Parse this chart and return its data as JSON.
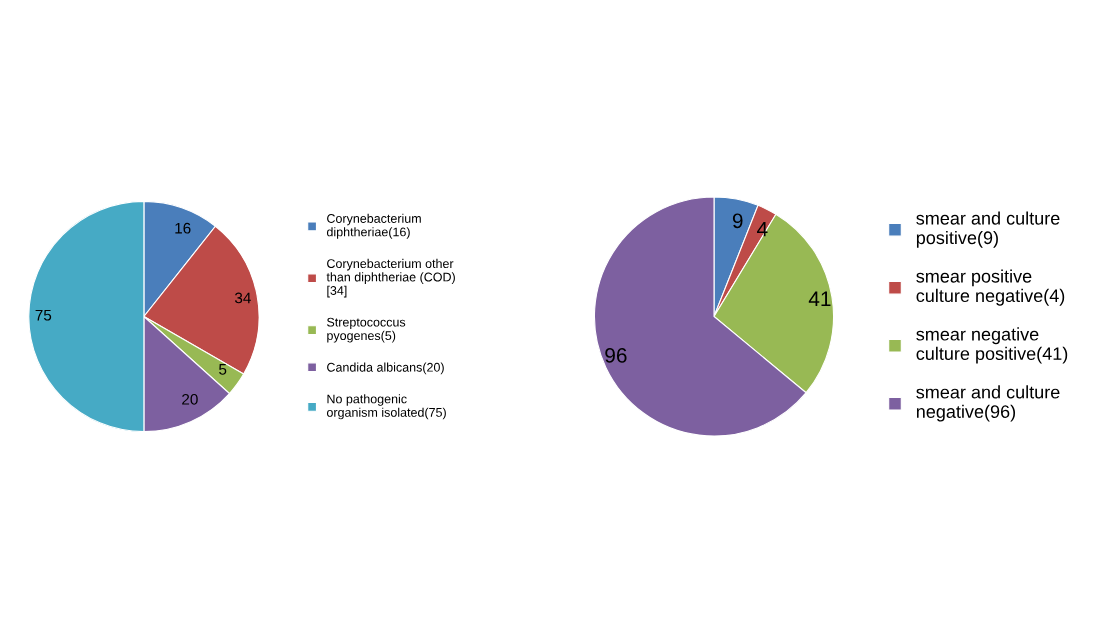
{
  "chart_data": [
    {
      "type": "pie",
      "categories": [
        "Corynebacterium\ndiphtheriae(16)",
        "Corynebacterium other\nthan diphtheriae (COD)\n[34]",
        "Streptococcus\npyogenes(5)",
        "Candida albicans(20)",
        "No pathogenic\norganism isolated(75)"
      ],
      "values": [
        16,
        34,
        5,
        20,
        75
      ],
      "colors": [
        "#4a7ebb",
        "#be4b48",
        "#98b954",
        "#7d60a0",
        "#46aac5"
      ],
      "data_labels": true,
      "legend": "right"
    },
    {
      "type": "pie",
      "categories": [
        "smear and culture\npositive(9)",
        "smear positive\nculture negative(4)",
        "smear negative\nculture positive(41)",
        "smear and culture\nnegative(96)"
      ],
      "values": [
        9,
        4,
        41,
        96
      ],
      "colors": [
        "#4a7ebb",
        "#be4b48",
        "#98b954",
        "#7d60a0"
      ],
      "data_labels": true,
      "legend": "right"
    }
  ]
}
